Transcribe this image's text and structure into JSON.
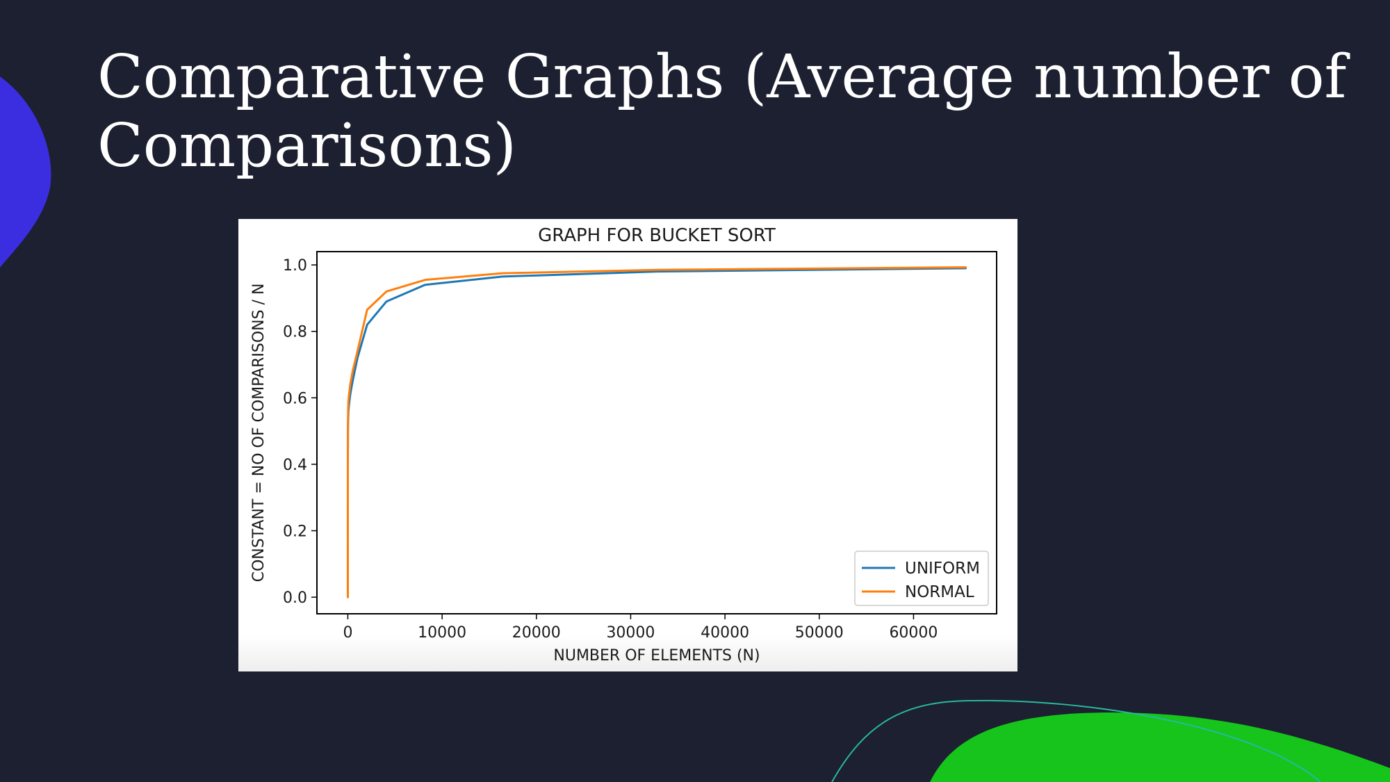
{
  "slide": {
    "title": "Comparative Graphs (Average number of Comparisons)",
    "colors": {
      "background": "#1c2030",
      "accent_blue": "#3b2ee0",
      "accent_green": "#16c41c",
      "accent_teal_line": "#2ab8a0"
    }
  },
  "chart_data": {
    "type": "line",
    "title": "GRAPH FOR BUCKET SORT",
    "xlabel": "NUMBER OF ELEMENTS (N)",
    "ylabel": "CONSTANT = NO OF COMPARISONS / N",
    "xlim": [
      -3277,
      68813
    ],
    "ylim": [
      -0.05,
      1.04
    ],
    "x_ticks": [
      0,
      10000,
      20000,
      30000,
      40000,
      50000,
      60000
    ],
    "y_ticks": [
      0.0,
      0.2,
      0.4,
      0.6,
      0.8,
      1.0
    ],
    "y_tick_labels": [
      "0.0",
      "0.2",
      "0.4",
      "0.6",
      "0.8",
      "1.0"
    ],
    "grid": false,
    "legend_position": "lower-right",
    "series": [
      {
        "name": "UNIFORM",
        "color": "#1f77b4",
        "x": [
          1,
          2,
          4,
          8,
          16,
          32,
          64,
          128,
          256,
          512,
          1024,
          2048,
          4096,
          8192,
          16384,
          32768,
          65536
        ],
        "y": [
          0.0,
          0.25,
          0.38,
          0.45,
          0.5,
          0.53,
          0.56,
          0.58,
          0.61,
          0.65,
          0.72,
          0.82,
          0.89,
          0.94,
          0.965,
          0.98,
          0.99
        ]
      },
      {
        "name": "NORMAL",
        "color": "#ff7f0e",
        "x": [
          1,
          2,
          4,
          8,
          16,
          32,
          64,
          128,
          256,
          512,
          1024,
          2048,
          4096,
          8192,
          16384,
          32768,
          65536
        ],
        "y": [
          0.0,
          0.3,
          0.42,
          0.48,
          0.53,
          0.56,
          0.59,
          0.61,
          0.64,
          0.68,
          0.74,
          0.865,
          0.92,
          0.955,
          0.975,
          0.985,
          0.993
        ]
      }
    ]
  }
}
